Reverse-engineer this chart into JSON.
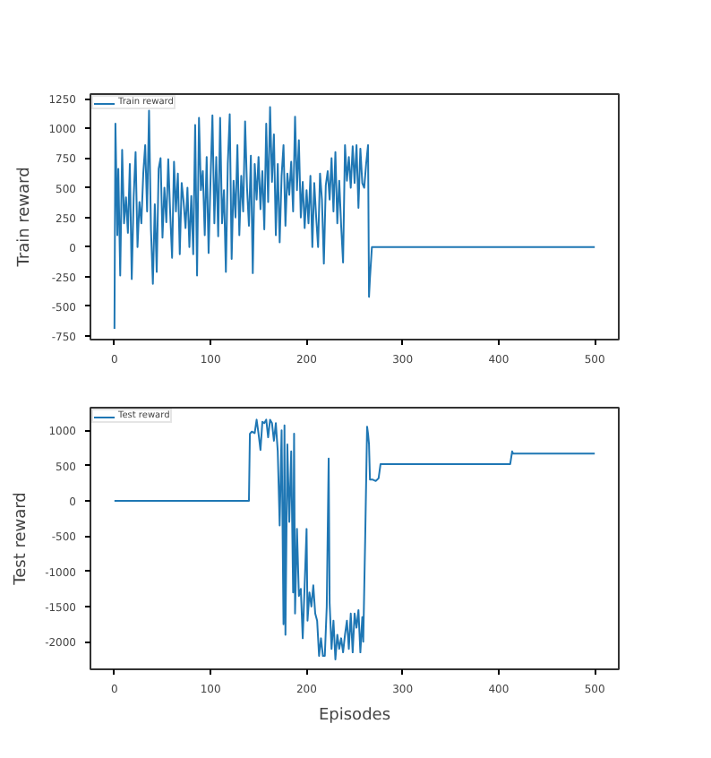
{
  "chart_data": [
    {
      "type": "line",
      "ylabel": "Train reward",
      "legend": "top left",
      "grid": false,
      "xlim": [
        -25,
        525
      ],
      "xticks": [
        0,
        100,
        200,
        300,
        400,
        500
      ],
      "ylim": [
        -780,
        1290
      ],
      "yticks": [
        -750,
        -500,
        -250,
        0,
        250,
        500,
        750,
        1000,
        1250
      ],
      "x": [
        0,
        1,
        3,
        4,
        6,
        8,
        10,
        12,
        14,
        16,
        18,
        20,
        22,
        24,
        26,
        28,
        30,
        32,
        34,
        36,
        38,
        40,
        42,
        44,
        46,
        48,
        50,
        52,
        54,
        56,
        58,
        60,
        62,
        64,
        66,
        68,
        70,
        72,
        74,
        76,
        78,
        80,
        82,
        84,
        86,
        88,
        90,
        92,
        94,
        96,
        98,
        100,
        102,
        104,
        106,
        108,
        110,
        112,
        114,
        116,
        118,
        120,
        122,
        124,
        126,
        128,
        130,
        132,
        134,
        136,
        138,
        140,
        142,
        144,
        146,
        148,
        150,
        152,
        154,
        156,
        158,
        160,
        162,
        164,
        166,
        168,
        170,
        172,
        174,
        176,
        178,
        180,
        182,
        184,
        186,
        188,
        190,
        192,
        194,
        196,
        198,
        200,
        202,
        204,
        206,
        208,
        210,
        212,
        214,
        216,
        218,
        220,
        222,
        224,
        226,
        228,
        230,
        232,
        234,
        236,
        238,
        240,
        242,
        244,
        246,
        248,
        250,
        252,
        254,
        256,
        258,
        260,
        262,
        264,
        265,
        266,
        268,
        500
      ],
      "series": [
        {
          "name": "Train reward",
          "color": "#1f77b4",
          "values": [
            -690,
            1040,
            100,
            660,
            -240,
            820,
            200,
            420,
            120,
            700,
            -270,
            420,
            800,
            0,
            380,
            200,
            620,
            860,
            300,
            1150,
            150,
            -310,
            360,
            -210,
            660,
            750,
            80,
            500,
            210,
            740,
            290,
            -90,
            720,
            300,
            620,
            -60,
            540,
            380,
            160,
            500,
            0,
            430,
            -60,
            1030,
            -240,
            1090,
            480,
            640,
            100,
            760,
            -50,
            560,
            1110,
            200,
            760,
            90,
            1090,
            200,
            480,
            -210,
            700,
            1120,
            -100,
            560,
            250,
            860,
            100,
            600,
            300,
            1060,
            500,
            180,
            770,
            -220,
            700,
            400,
            760,
            320,
            640,
            150,
            1040,
            380,
            1180,
            550,
            950,
            100,
            700,
            40,
            600,
            860,
            180,
            620,
            440,
            720,
            300,
            1100,
            480,
            900,
            250,
            550,
            160,
            480,
            200,
            600,
            0,
            540,
            250,
            0,
            620,
            400,
            -140,
            520,
            640,
            400,
            750,
            300,
            800,
            200,
            560,
            180,
            -130,
            860,
            560,
            760,
            500,
            850,
            540,
            860,
            330,
            830,
            540,
            500,
            700,
            860,
            -420,
            -260,
            0,
            0
          ]
        }
      ]
    },
    {
      "type": "line",
      "xlabel": "Episodes",
      "ylabel": "Test reward",
      "legend": "top left",
      "grid": false,
      "xlim": [
        -25,
        525
      ],
      "xticks": [
        0,
        100,
        200,
        300,
        400,
        500
      ],
      "ylim": [
        -2390,
        1320
      ],
      "yticks": [
        -2000,
        -1500,
        -1000,
        -500,
        0,
        500,
        1000
      ],
      "x": [
        0,
        140,
        141,
        143,
        146,
        148,
        150,
        152,
        154,
        156,
        158,
        160,
        162,
        164,
        166,
        168,
        170,
        172,
        174,
        176,
        177,
        178,
        180,
        182,
        184,
        186,
        187,
        188,
        190,
        192,
        194,
        196,
        198,
        200,
        201,
        203,
        205,
        207,
        209,
        211,
        213,
        215,
        217,
        219,
        221,
        223,
        224,
        226,
        228,
        230,
        232,
        234,
        236,
        238,
        240,
        242,
        244,
        246,
        248,
        250,
        252,
        254,
        256,
        258,
        259,
        261,
        263,
        264,
        265,
        266,
        269,
        272,
        275,
        277,
        412,
        414,
        415,
        500
      ],
      "series": [
        {
          "name": "Test reward",
          "color": "#1f77b4",
          "values": [
            0,
            0,
            950,
            980,
            960,
            1150,
            950,
            720,
            1120,
            1100,
            1150,
            900,
            1150,
            1100,
            850,
            1100,
            700,
            -350,
            1000,
            -1750,
            1070,
            -1900,
            800,
            -300,
            700,
            -1300,
            950,
            -1600,
            -400,
            -1350,
            -1250,
            -1950,
            -1200,
            -400,
            -1700,
            -1300,
            -1500,
            -1200,
            -1600,
            -1700,
            -2200,
            -1950,
            -2200,
            -2200,
            -1500,
            600,
            -1450,
            -2100,
            -1700,
            -2250,
            -1900,
            -2100,
            -1950,
            -2150,
            -1900,
            -1700,
            -2100,
            -1600,
            -2150,
            -1600,
            -1800,
            -1550,
            -2150,
            -1650,
            -2000,
            -550,
            1050,
            950,
            800,
            300,
            300,
            280,
            320,
            520,
            520,
            700,
            670,
            670
          ]
        }
      ]
    }
  ]
}
